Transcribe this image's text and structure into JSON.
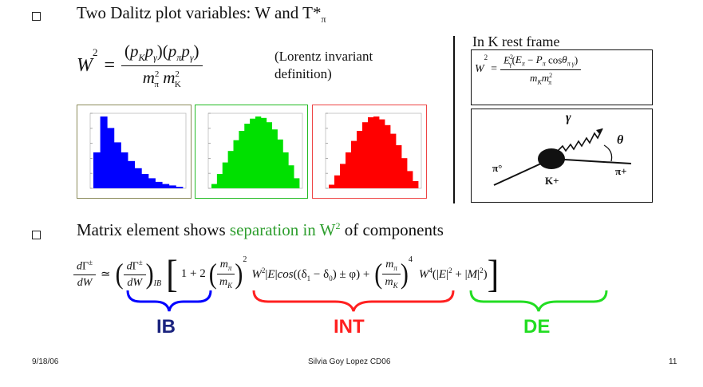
{
  "bullet1": {
    "text_a": "Two Dalitz plot variables: W and T*",
    "sub": "π"
  },
  "lorentz_note": {
    "line1": "(Lorentz invariant",
    "line2": "definition)"
  },
  "k_rest": {
    "title": "In K rest frame"
  },
  "feynman": {
    "gamma": "γ",
    "theta": "θ",
    "pi_left": "π°",
    "pi_right": "π+",
    "kaon": "K+"
  },
  "bullet2": {
    "prefix": "Matrix element shows ",
    "highlight": "separation in W",
    "sup": "2",
    "suffix": " of components"
  },
  "brace_labels": {
    "ib": "IB",
    "int": "INT",
    "de": "DE"
  },
  "footer": {
    "date": "9/18/06",
    "author": "Silvia Goy Lopez CD06",
    "page": "11"
  },
  "colors": {
    "blue": "#0000ff",
    "green": "#00e000",
    "red": "#ff0000",
    "ib": "#1a237e",
    "int": "#ff2020",
    "de": "#22dd22",
    "highlight": "#2e9e2e"
  },
  "histograms": [
    {
      "color": "blue",
      "frame": "#8b8b5a",
      "values": [
        0.5,
        1.0,
        0.84,
        0.64,
        0.5,
        0.38,
        0.28,
        0.2,
        0.14,
        0.09,
        0.06,
        0.04,
        0.02
      ]
    },
    {
      "color": "green",
      "frame": "#22bb22",
      "values": [
        0.06,
        0.2,
        0.36,
        0.52,
        0.67,
        0.8,
        0.9,
        0.97,
        1.0,
        0.98,
        0.92,
        0.82,
        0.68,
        0.5,
        0.32,
        0.14
      ]
    },
    {
      "color": "red",
      "frame": "#ee4444",
      "values": [
        0.05,
        0.18,
        0.34,
        0.5,
        0.66,
        0.8,
        0.92,
        0.99,
        1.0,
        0.96,
        0.88,
        0.76,
        0.6,
        0.42,
        0.24,
        0.1
      ]
    }
  ]
}
